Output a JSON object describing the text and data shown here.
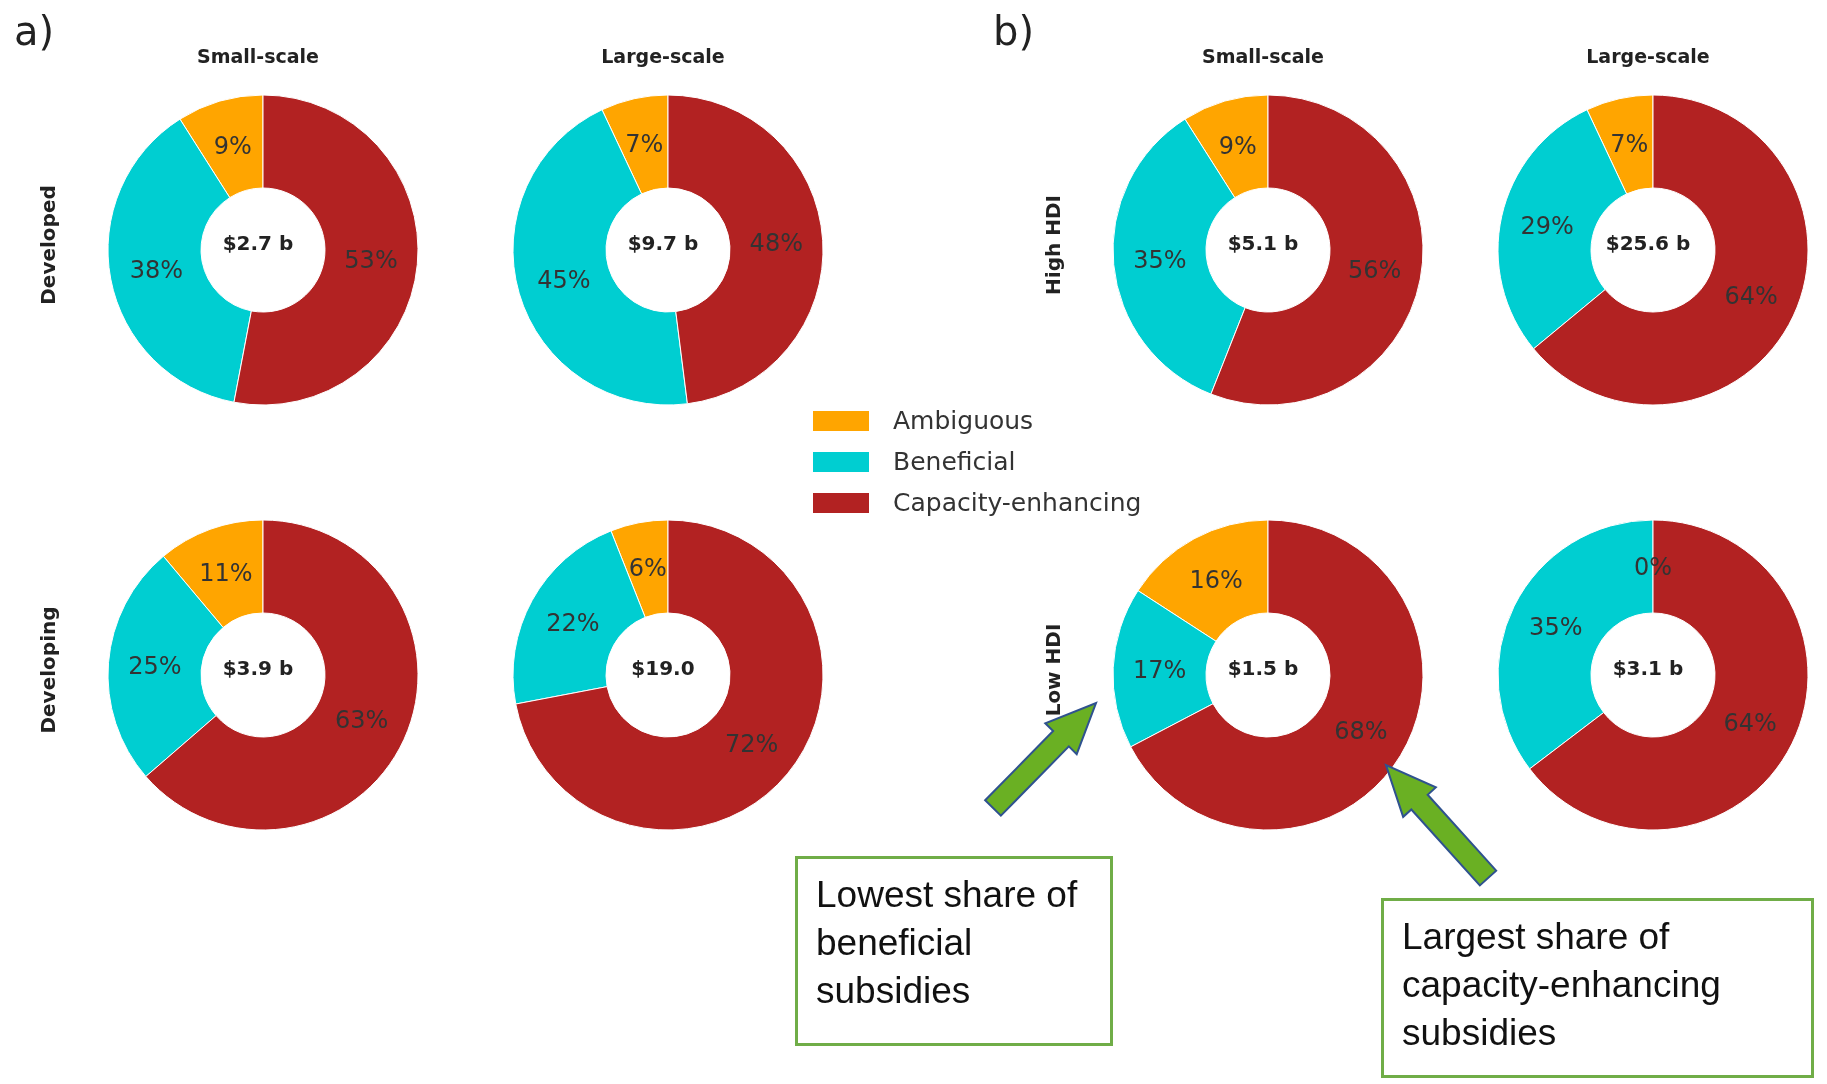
{
  "chart_data": [
    {
      "type": "donut",
      "title": "Small-scale",
      "ylabel": "Developed",
      "categories": [
        "Ambiguous",
        "Beneficial",
        "Capacity-enhancing"
      ],
      "values": [
        9,
        38,
        53
      ],
      "value_labels": [
        "9%",
        "38%",
        "53%"
      ],
      "colors": [
        "#ffa500",
        "#00ced1",
        "#b22222"
      ],
      "annotations": [
        "$2.7 b",
        "a)"
      ],
      "legend": "right"
    },
    {
      "type": "donut",
      "title": "Large-scale",
      "categories": [
        null,
        null,
        null
      ],
      "values": [
        7,
        45,
        48
      ],
      "value_labels": [
        "7%",
        "45%",
        "48%"
      ],
      "colors": [
        "#ffa500",
        "#00ced1",
        "#b22222"
      ],
      "annotations": [
        "$9.7 b"
      ]
    },
    {
      "type": "donut",
      "title": "Small-scale",
      "ylabel": "High HDI",
      "categories": [
        null,
        null,
        null
      ],
      "values": [
        9,
        35,
        56
      ],
      "value_labels": [
        "9%",
        "35%",
        "56%"
      ],
      "colors": [
        "#ffa500",
        "#00ced1",
        "#b22222"
      ],
      "annotations": [
        "$5.1 b",
        "b)"
      ]
    },
    {
      "type": "donut",
      "title": "Large-scale",
      "categories": [
        null,
        null,
        null
      ],
      "values": [
        7,
        29,
        64
      ],
      "value_labels": [
        "7%",
        "29%",
        "64%"
      ],
      "colors": [
        "#ffa500",
        "#00ced1",
        "#b22222"
      ],
      "annotations": [
        "$25.6 b"
      ]
    },
    {
      "type": "donut",
      "ylabel": "Developing",
      "categories": [
        null,
        null,
        null
      ],
      "values": [
        11,
        25,
        63
      ],
      "value_labels": [
        "11%",
        "25%",
        "63%"
      ],
      "colors": [
        "#ffa500",
        "#00ced1",
        "#b22222"
      ],
      "annotations": [
        "$3.9 b"
      ]
    },
    {
      "type": "donut",
      "categories": [
        null,
        null,
        null
      ],
      "values": [
        6,
        22,
        72
      ],
      "value_labels": [
        "6%",
        "22%",
        "72%"
      ],
      "colors": [
        "#ffa500",
        "#00ced1",
        "#b22222"
      ],
      "annotations": [
        "$19.0"
      ]
    },
    {
      "type": "donut",
      "ylabel": "Low HDI",
      "categories": [
        null,
        null,
        null
      ],
      "values": [
        16,
        17,
        68
      ],
      "value_labels": [
        "16%",
        "17%",
        "68%"
      ],
      "colors": [
        "#ffa500",
        "#00ced1",
        "#b22222"
      ],
      "annotations": [
        "$1.5 b",
        "Lowest share of beneficial subsidies",
        "Largest share of capacity-enhancing subsidies"
      ]
    },
    {
      "type": "donut",
      "categories": [
        null,
        null,
        null
      ],
      "values": [
        0,
        35,
        64
      ],
      "value_labels": [
        "0%",
        "35%",
        "64%"
      ],
      "colors": [
        "#ffa500",
        "#00ced1",
        "#b22222"
      ],
      "annotations": [
        "$3.1 b"
      ]
    }
  ]
}
